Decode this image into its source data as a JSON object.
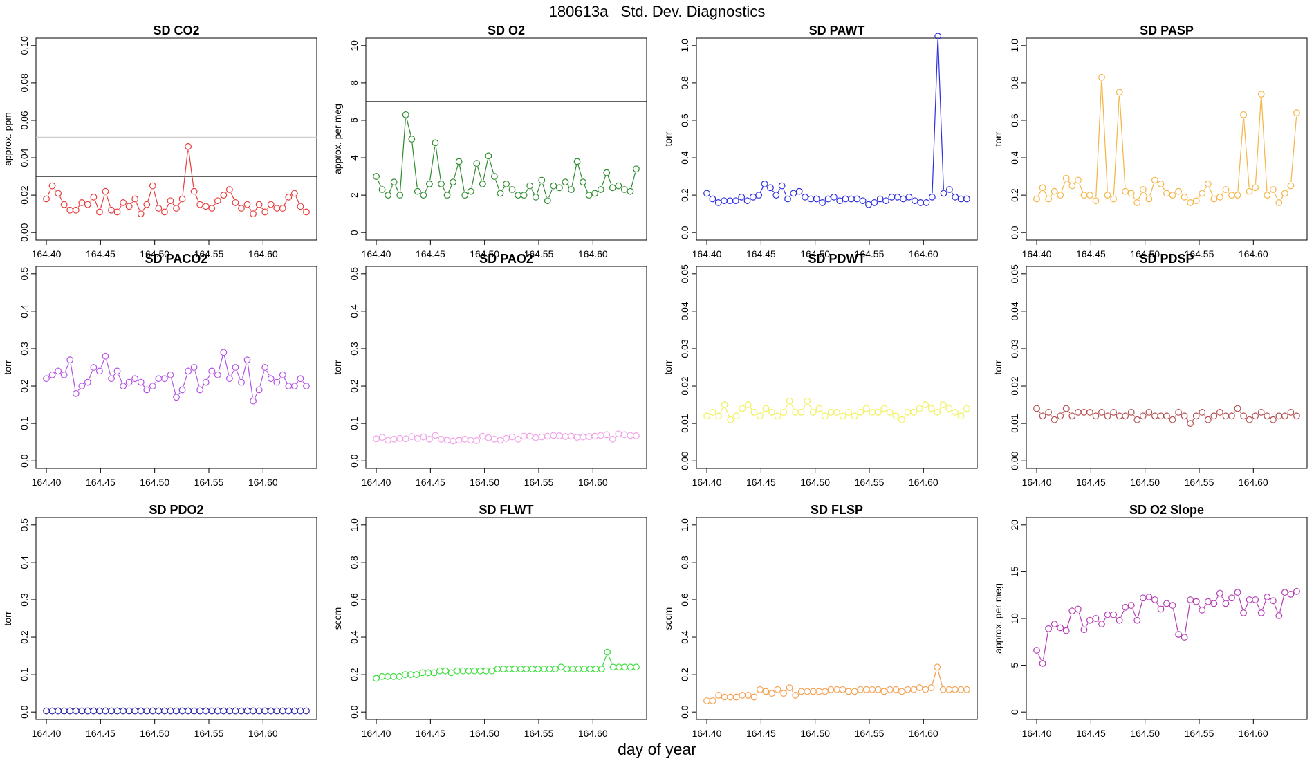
{
  "title": "180613a   Std. Dev. Diagnostics",
  "xlabel": "day of year",
  "chart_data": [
    {
      "type": "line",
      "title": "SD CO2",
      "ylabel": "approx. ppm",
      "color": "#e83c3c",
      "xlim": [
        164.4,
        164.64
      ],
      "ylim": [
        0,
        0.1
      ],
      "xticks": [
        "164.40",
        "164.45",
        "164.50",
        "164.55",
        "164.60"
      ],
      "yticks": [
        "0.00",
        "0.02",
        "0.04",
        "0.06",
        "0.08",
        "0.10"
      ],
      "hlines": [
        {
          "y": 0.051,
          "color": "#c8c8c8"
        },
        {
          "y": 0.03,
          "color": "#000000"
        }
      ],
      "values": [
        0.018,
        0.025,
        0.021,
        0.015,
        0.012,
        0.012,
        0.016,
        0.015,
        0.019,
        0.011,
        0.022,
        0.012,
        0.011,
        0.016,
        0.014,
        0.018,
        0.01,
        0.015,
        0.025,
        0.013,
        0.011,
        0.017,
        0.013,
        0.018,
        0.046,
        0.022,
        0.015,
        0.014,
        0.013,
        0.017,
        0.02,
        0.023,
        0.016,
        0.013,
        0.015,
        0.01,
        0.015,
        0.011,
        0.015,
        0.013,
        0.013,
        0.019,
        0.021,
        0.014,
        0.011
      ]
    },
    {
      "type": "line",
      "title": "SD O2",
      "ylabel": "approx. per meg",
      "color": "#2e8b2e",
      "xlim": [
        164.4,
        164.64
      ],
      "ylim": [
        0,
        10
      ],
      "xticks": [
        "164.40",
        "164.45",
        "164.50",
        "164.55",
        "164.60"
      ],
      "yticks": [
        "0",
        "2",
        "4",
        "6",
        "8",
        "10"
      ],
      "hlines": [
        {
          "y": 7.0,
          "color": "#000000"
        }
      ],
      "values": [
        3.0,
        2.3,
        2.0,
        2.7,
        2.0,
        6.3,
        5.0,
        2.2,
        2.0,
        2.6,
        4.8,
        2.6,
        2.0,
        2.7,
        3.8,
        2.0,
        2.2,
        3.7,
        2.6,
        4.1,
        3.0,
        2.1,
        2.6,
        2.3,
        2.0,
        2.0,
        2.5,
        1.9,
        2.8,
        1.7,
        2.5,
        2.4,
        2.7,
        2.3,
        3.8,
        2.7,
        2.0,
        2.1,
        2.3,
        3.2,
        2.4,
        2.5,
        2.3,
        2.2,
        3.4
      ]
    },
    {
      "type": "line",
      "title": "SD PAWT",
      "ylabel": "torr",
      "color": "#2f2fe0",
      "xlim": [
        164.4,
        164.64
      ],
      "ylim": [
        0,
        1.0
      ],
      "xticks": [
        "164.40",
        "164.45",
        "164.50",
        "164.55",
        "164.60"
      ],
      "yticks": [
        "0.0",
        "0.2",
        "0.4",
        "0.6",
        "0.8",
        "1.0"
      ],
      "values": [
        0.21,
        0.18,
        0.16,
        0.17,
        0.17,
        0.17,
        0.19,
        0.17,
        0.19,
        0.2,
        0.26,
        0.24,
        0.2,
        0.25,
        0.18,
        0.21,
        0.22,
        0.19,
        0.18,
        0.18,
        0.16,
        0.18,
        0.19,
        0.17,
        0.18,
        0.18,
        0.18,
        0.17,
        0.15,
        0.16,
        0.18,
        0.17,
        0.19,
        0.19,
        0.18,
        0.19,
        0.17,
        0.16,
        0.16,
        0.19,
        1.05,
        0.21,
        0.23,
        0.19,
        0.18,
        0.18
      ]
    },
    {
      "type": "line",
      "title": "SD PASP",
      "ylabel": "torr",
      "color": "#f5b444",
      "xlim": [
        164.4,
        164.64
      ],
      "ylim": [
        0,
        1.0
      ],
      "xticks": [
        "164.40",
        "164.45",
        "164.50",
        "164.55",
        "164.60"
      ],
      "yticks": [
        "0.0",
        "0.2",
        "0.4",
        "0.6",
        "0.8",
        "1.0"
      ],
      "values": [
        0.18,
        0.24,
        0.18,
        0.22,
        0.2,
        0.29,
        0.25,
        0.28,
        0.2,
        0.2,
        0.17,
        0.83,
        0.2,
        0.18,
        0.75,
        0.22,
        0.21,
        0.16,
        0.23,
        0.18,
        0.28,
        0.26,
        0.21,
        0.2,
        0.22,
        0.19,
        0.16,
        0.17,
        0.21,
        0.26,
        0.18,
        0.19,
        0.23,
        0.2,
        0.2,
        0.63,
        0.22,
        0.24,
        0.74,
        0.2,
        0.23,
        0.16,
        0.21,
        0.25,
        0.64
      ]
    },
    {
      "type": "line",
      "title": "SD PACO2",
      "ylabel": "torr",
      "color": "#b450e6",
      "xlim": [
        164.4,
        164.64
      ],
      "ylim": [
        0,
        0.5
      ],
      "xticks": [
        "164.40",
        "164.45",
        "164.50",
        "164.55",
        "164.60"
      ],
      "yticks": [
        "0.0",
        "0.1",
        "0.2",
        "0.3",
        "0.4",
        "0.5"
      ],
      "values": [
        0.22,
        0.23,
        0.24,
        0.23,
        0.27,
        0.18,
        0.2,
        0.21,
        0.25,
        0.24,
        0.28,
        0.22,
        0.24,
        0.2,
        0.21,
        0.22,
        0.21,
        0.19,
        0.2,
        0.22,
        0.22,
        0.23,
        0.17,
        0.19,
        0.24,
        0.25,
        0.19,
        0.21,
        0.24,
        0.23,
        0.29,
        0.22,
        0.25,
        0.21,
        0.27,
        0.16,
        0.19,
        0.25,
        0.22,
        0.21,
        0.23,
        0.2,
        0.2,
        0.22,
        0.2
      ]
    },
    {
      "type": "line",
      "title": "SD PAO2",
      "ylabel": "torr",
      "color": "#f0a0e6",
      "xlim": [
        164.4,
        164.64
      ],
      "ylim": [
        0,
        0.5
      ],
      "xticks": [
        "164.40",
        "164.45",
        "164.50",
        "164.55",
        "164.60"
      ],
      "yticks": [
        "0.0",
        "0.1",
        "0.2",
        "0.3",
        "0.4",
        "0.5"
      ],
      "values": [
        0.059,
        0.063,
        0.055,
        0.058,
        0.06,
        0.059,
        0.065,
        0.06,
        0.064,
        0.058,
        0.068,
        0.058,
        0.055,
        0.053,
        0.055,
        0.058,
        0.055,
        0.054,
        0.066,
        0.062,
        0.058,
        0.055,
        0.06,
        0.064,
        0.058,
        0.066,
        0.066,
        0.062,
        0.064,
        0.066,
        0.068,
        0.067,
        0.065,
        0.066,
        0.063,
        0.064,
        0.065,
        0.066,
        0.068,
        0.07,
        0.058,
        0.072,
        0.07,
        0.068,
        0.067
      ]
    },
    {
      "type": "line",
      "title": "SD PDWT",
      "ylabel": "torr",
      "color": "#f0f05a",
      "xlim": [
        164.4,
        164.64
      ],
      "ylim": [
        0,
        0.05
      ],
      "xticks": [
        "164.40",
        "164.45",
        "164.50",
        "164.55",
        "164.60"
      ],
      "yticks": [
        "0.00",
        "0.01",
        "0.02",
        "0.03",
        "0.04",
        "0.05"
      ],
      "values": [
        0.012,
        0.013,
        0.012,
        0.015,
        0.011,
        0.012,
        0.014,
        0.015,
        0.013,
        0.012,
        0.014,
        0.013,
        0.012,
        0.013,
        0.016,
        0.013,
        0.013,
        0.016,
        0.013,
        0.014,
        0.012,
        0.013,
        0.013,
        0.012,
        0.013,
        0.012,
        0.013,
        0.014,
        0.013,
        0.013,
        0.014,
        0.013,
        0.012,
        0.011,
        0.013,
        0.013,
        0.014,
        0.015,
        0.014,
        0.013,
        0.015,
        0.014,
        0.013,
        0.012,
        0.014
      ]
    },
    {
      "type": "line",
      "title": "SD PDSP",
      "ylabel": "torr",
      "color": "#b45050",
      "xlim": [
        164.4,
        164.64
      ],
      "ylim": [
        0,
        0.05
      ],
      "xticks": [
        "164.40",
        "164.45",
        "164.50",
        "164.55",
        "164.60"
      ],
      "yticks": [
        "0.00",
        "0.01",
        "0.02",
        "0.03",
        "0.04",
        "0.05"
      ],
      "values": [
        0.014,
        0.012,
        0.013,
        0.011,
        0.012,
        0.014,
        0.012,
        0.013,
        0.013,
        0.013,
        0.012,
        0.013,
        0.012,
        0.013,
        0.012,
        0.012,
        0.013,
        0.011,
        0.012,
        0.013,
        0.012,
        0.012,
        0.012,
        0.011,
        0.013,
        0.012,
        0.01,
        0.012,
        0.013,
        0.011,
        0.012,
        0.013,
        0.012,
        0.012,
        0.014,
        0.012,
        0.011,
        0.012,
        0.013,
        0.012,
        0.011,
        0.012,
        0.012,
        0.013,
        0.012
      ]
    },
    {
      "type": "line",
      "title": "SD PDO2",
      "ylabel": "torr",
      "color": "#2a2aaa",
      "xlim": [
        164.4,
        164.64
      ],
      "ylim": [
        0,
        0.5
      ],
      "xticks": [
        "164.40",
        "164.45",
        "164.50",
        "164.55",
        "164.60"
      ],
      "yticks": [
        "0.0",
        "0.1",
        "0.2",
        "0.3",
        "0.4",
        "0.5"
      ],
      "values": [
        0.003,
        0.003,
        0.003,
        0.003,
        0.003,
        0.003,
        0.003,
        0.003,
        0.003,
        0.003,
        0.003,
        0.003,
        0.003,
        0.003,
        0.003,
        0.003,
        0.003,
        0.003,
        0.003,
        0.003,
        0.003,
        0.003,
        0.003,
        0.003,
        0.003,
        0.003,
        0.003,
        0.003,
        0.003,
        0.003,
        0.003,
        0.003,
        0.003,
        0.003,
        0.003,
        0.003,
        0.003,
        0.003,
        0.003,
        0.003,
        0.003,
        0.003,
        0.003,
        0.003,
        0.003
      ]
    },
    {
      "type": "line",
      "title": "SD FLWT",
      "ylabel": "sccm",
      "color": "#3cdc3c",
      "xlim": [
        164.4,
        164.64
      ],
      "ylim": [
        0,
        1.0
      ],
      "xticks": [
        "164.40",
        "164.45",
        "164.50",
        "164.55",
        "164.60"
      ],
      "yticks": [
        "0.0",
        "0.2",
        "0.4",
        "0.6",
        "0.8",
        "1.0"
      ],
      "values": [
        0.18,
        0.19,
        0.19,
        0.19,
        0.19,
        0.2,
        0.2,
        0.2,
        0.21,
        0.21,
        0.21,
        0.22,
        0.22,
        0.21,
        0.22,
        0.22,
        0.22,
        0.22,
        0.22,
        0.22,
        0.22,
        0.23,
        0.23,
        0.23,
        0.23,
        0.23,
        0.23,
        0.23,
        0.23,
        0.23,
        0.23,
        0.23,
        0.24,
        0.23,
        0.23,
        0.23,
        0.23,
        0.23,
        0.23,
        0.23,
        0.32,
        0.24,
        0.24,
        0.24,
        0.24,
        0.24
      ]
    },
    {
      "type": "line",
      "title": "SD FLSP",
      "ylabel": "sccm",
      "color": "#f5a050",
      "xlim": [
        164.4,
        164.64
      ],
      "ylim": [
        0,
        1.0
      ],
      "xticks": [
        "164.40",
        "164.45",
        "164.50",
        "164.55",
        "164.60"
      ],
      "yticks": [
        "0.0",
        "0.2",
        "0.4",
        "0.6",
        "0.8",
        "1.0"
      ],
      "values": [
        0.06,
        0.06,
        0.09,
        0.08,
        0.08,
        0.08,
        0.09,
        0.09,
        0.08,
        0.12,
        0.11,
        0.1,
        0.12,
        0.1,
        0.13,
        0.09,
        0.11,
        0.11,
        0.11,
        0.11,
        0.11,
        0.12,
        0.12,
        0.12,
        0.11,
        0.11,
        0.12,
        0.12,
        0.12,
        0.12,
        0.11,
        0.12,
        0.12,
        0.11,
        0.12,
        0.12,
        0.13,
        0.12,
        0.13,
        0.24,
        0.12,
        0.12,
        0.12,
        0.12,
        0.12
      ]
    },
    {
      "type": "line",
      "title": "SD O2 Slope",
      "ylabel": "approx. per meg",
      "color": "#b43cb4",
      "xlim": [
        164.4,
        164.64
      ],
      "ylim": [
        0,
        20
      ],
      "xticks": [
        "164.40",
        "164.45",
        "164.50",
        "164.55",
        "164.60"
      ],
      "yticks": [
        "0",
        "5",
        "10",
        "15",
        "20"
      ],
      "values": [
        6.6,
        5.2,
        8.9,
        9.4,
        9.0,
        8.7,
        10.8,
        11.0,
        8.8,
        9.8,
        10.0,
        9.4,
        10.4,
        10.4,
        9.8,
        11.2,
        11.4,
        9.8,
        12.2,
        12.3,
        12.0,
        11.0,
        11.6,
        11.4,
        8.3,
        8.0,
        12.0,
        11.8,
        10.9,
        11.8,
        11.6,
        12.7,
        11.6,
        12.2,
        12.8,
        10.6,
        12.0,
        12.0,
        10.6,
        12.3,
        11.9,
        10.3,
        12.8,
        12.6,
        12.9
      ]
    }
  ]
}
